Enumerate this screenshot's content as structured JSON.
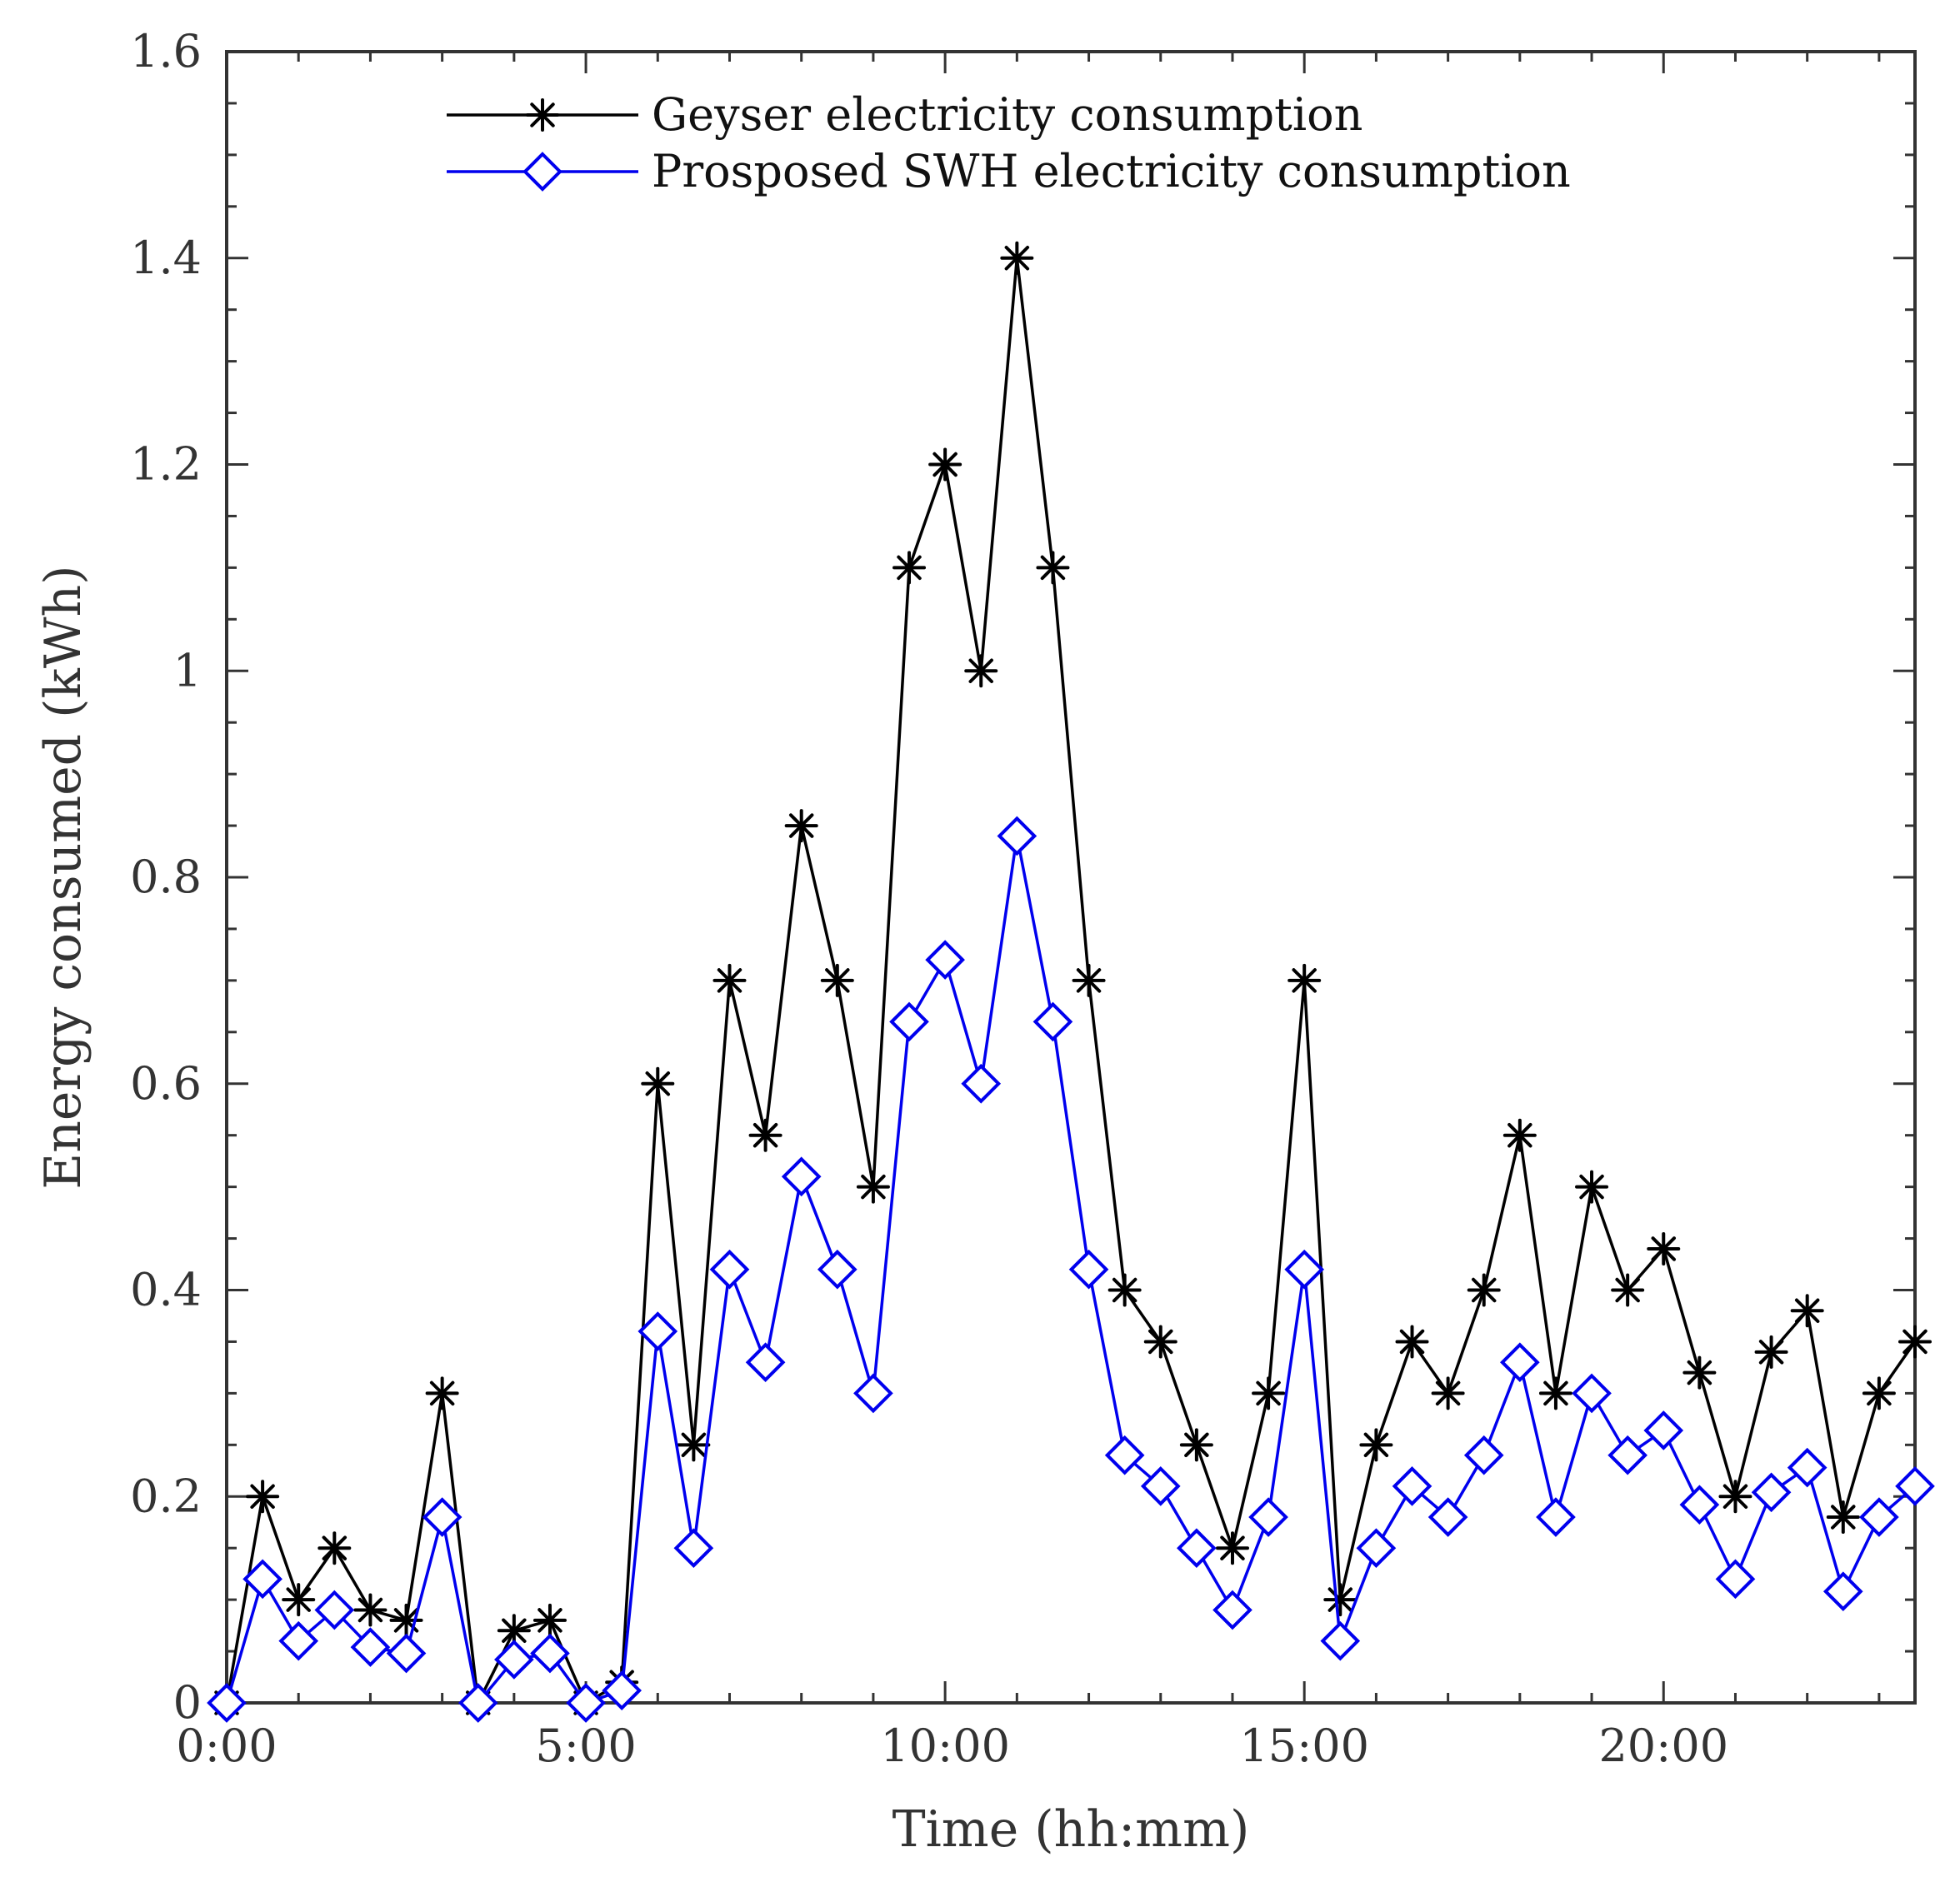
{
  "chart_data": {
    "type": "line",
    "title": "",
    "xlabel": "Time (hh:mm)",
    "ylabel": "Energy consumed (kWh)",
    "xlim": [
      0,
      23.5
    ],
    "ylim": [
      0,
      1.6
    ],
    "grid": false,
    "legend_position": "top-left",
    "x_ticks": [
      {
        "value": 0,
        "label": "0:00"
      },
      {
        "value": 5,
        "label": "5:00"
      },
      {
        "value": 10,
        "label": "10:00"
      },
      {
        "value": 15,
        "label": "15:00"
      },
      {
        "value": 20,
        "label": "20:00"
      }
    ],
    "y_ticks": [
      {
        "value": 0,
        "label": "0"
      },
      {
        "value": 0.2,
        "label": "0.2"
      },
      {
        "value": 0.4,
        "label": "0.4"
      },
      {
        "value": 0.6,
        "label": "0.6"
      },
      {
        "value": 0.8,
        "label": "0.8"
      },
      {
        "value": 1.0,
        "label": "1"
      },
      {
        "value": 1.2,
        "label": "1.2"
      },
      {
        "value": 1.4,
        "label": "1.4"
      },
      {
        "value": 1.6,
        "label": "1.6"
      }
    ],
    "x": [
      0,
      0.5,
      1,
      1.5,
      2,
      2.5,
      3,
      3.5,
      4,
      4.5,
      5,
      5.5,
      6,
      6.5,
      7,
      7.5,
      8,
      8.5,
      9,
      9.5,
      10,
      10.5,
      11,
      11.5,
      12,
      12.5,
      13,
      13.5,
      14,
      14.5,
      15,
      15.5,
      16,
      16.5,
      17,
      17.5,
      18,
      18.5,
      19,
      19.5,
      20,
      20.5,
      21,
      21.5,
      22,
      22.5,
      23,
      23.5
    ],
    "series": [
      {
        "name": "Geyser electricity consumption",
        "color": "#000000",
        "marker": "asterisk",
        "values": [
          0,
          0.2,
          0.1,
          0.15,
          0.09,
          0.08,
          0.3,
          0,
          0.07,
          0.08,
          0,
          0.02,
          0.6,
          0.25,
          0.7,
          0.55,
          0.85,
          0.7,
          0.5,
          1.1,
          1.2,
          1.0,
          1.4,
          1.1,
          0.7,
          0.4,
          0.35,
          0.25,
          0.15,
          0.3,
          0.7,
          0.1,
          0.25,
          0.35,
          0.3,
          0.4,
          0.55,
          0.3,
          0.5,
          0.4,
          0.44,
          0.32,
          0.2,
          0.34,
          0.38,
          0.18,
          0.3,
          0.35
        ]
      },
      {
        "name": "Prosposed SWH electricity consumption",
        "color": "#0000ee",
        "marker": "diamond",
        "values": [
          0,
          0.12,
          0.06,
          0.09,
          0.054,
          0.048,
          0.18,
          0,
          0.042,
          0.048,
          0,
          0.012,
          0.36,
          0.15,
          0.42,
          0.33,
          0.51,
          0.42,
          0.3,
          0.66,
          0.72,
          0.6,
          0.84,
          0.66,
          0.42,
          0.24,
          0.21,
          0.15,
          0.09,
          0.18,
          0.42,
          0.06,
          0.15,
          0.21,
          0.18,
          0.24,
          0.33,
          0.18,
          0.3,
          0.24,
          0.264,
          0.192,
          0.12,
          0.204,
          0.228,
          0.108,
          0.18,
          0.21
        ]
      }
    ]
  }
}
